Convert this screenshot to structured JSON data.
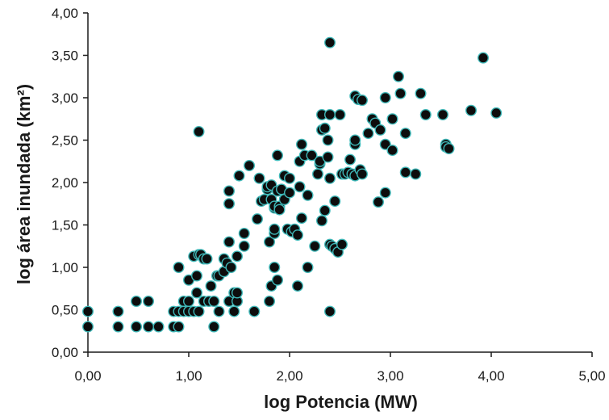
{
  "chart_data": {
    "type": "scatter",
    "xlabel": "log Potencia (MW)",
    "ylabel": "log área inundada (km²)",
    "xlim": [
      0,
      5
    ],
    "ylim": [
      0,
      4
    ],
    "x_ticks": [
      "0,00",
      "1,00",
      "2,00",
      "3,00",
      "4,00",
      "5,00"
    ],
    "y_ticks": [
      "0,00",
      "0,50",
      "1,00",
      "1,50",
      "2,00",
      "2,50",
      "3,00",
      "3,50",
      "4,00"
    ],
    "grid": false,
    "colors": {
      "marker_fill": "#0d0d0d",
      "marker_edge": "#3fb8b8",
      "axis": "#1a1a1a"
    },
    "series": [
      {
        "points": [
          [
            0.0,
            0.48
          ],
          [
            0.0,
            0.3
          ],
          [
            0.3,
            0.48
          ],
          [
            0.3,
            0.3
          ],
          [
            0.48,
            0.6
          ],
          [
            0.48,
            0.3
          ],
          [
            0.6,
            0.6
          ],
          [
            0.6,
            0.3
          ],
          [
            0.7,
            0.3
          ],
          [
            0.85,
            0.48
          ],
          [
            0.85,
            0.3
          ],
          [
            0.9,
            0.3
          ],
          [
            0.9,
            0.48
          ],
          [
            0.9,
            1.0
          ],
          [
            0.95,
            0.6
          ],
          [
            0.95,
            0.48
          ],
          [
            1.0,
            0.85
          ],
          [
            1.0,
            0.6
          ],
          [
            1.0,
            0.48
          ],
          [
            1.05,
            1.13
          ],
          [
            1.05,
            0.48
          ],
          [
            1.08,
            0.7
          ],
          [
            1.08,
            0.9
          ],
          [
            1.1,
            2.6
          ],
          [
            1.1,
            1.15
          ],
          [
            1.1,
            0.48
          ],
          [
            1.12,
            1.15
          ],
          [
            1.15,
            0.6
          ],
          [
            1.15,
            1.1
          ],
          [
            1.18,
            1.1
          ],
          [
            1.2,
            0.6
          ],
          [
            1.22,
            0.78
          ],
          [
            1.25,
            0.3
          ],
          [
            1.25,
            0.6
          ],
          [
            1.28,
            0.9
          ],
          [
            1.3,
            0.9
          ],
          [
            1.3,
            0.48
          ],
          [
            1.35,
            0.95
          ],
          [
            1.35,
            1.1
          ],
          [
            1.38,
            1.05
          ],
          [
            1.4,
            1.3
          ],
          [
            1.4,
            1.75
          ],
          [
            1.4,
            1.9
          ],
          [
            1.4,
            0.6
          ],
          [
            1.42,
            1.0
          ],
          [
            1.45,
            0.7
          ],
          [
            1.45,
            0.48
          ],
          [
            1.48,
            0.6
          ],
          [
            1.48,
            0.7
          ],
          [
            1.48,
            1.13
          ],
          [
            1.5,
            2.08
          ],
          [
            1.55,
            1.25
          ],
          [
            1.55,
            1.4
          ],
          [
            1.6,
            2.2
          ],
          [
            1.65,
            0.48
          ],
          [
            1.68,
            1.57
          ],
          [
            1.7,
            2.05
          ],
          [
            1.72,
            1.78
          ],
          [
            1.75,
            1.8
          ],
          [
            1.78,
            1.92
          ],
          [
            1.78,
            1.95
          ],
          [
            1.8,
            1.3
          ],
          [
            1.8,
            0.6
          ],
          [
            1.82,
            1.97
          ],
          [
            1.82,
            1.8
          ],
          [
            1.82,
            0.78
          ],
          [
            1.85,
            1.4
          ],
          [
            1.85,
            1.45
          ],
          [
            1.85,
            1.7
          ],
          [
            1.85,
            1.72
          ],
          [
            1.85,
            1.0
          ],
          [
            1.88,
            0.85
          ],
          [
            1.88,
            2.32
          ],
          [
            1.88,
            1.9
          ],
          [
            1.9,
            1.72
          ],
          [
            1.9,
            1.68
          ],
          [
            1.92,
            1.92
          ],
          [
            1.95,
            2.08
          ],
          [
            1.95,
            1.8
          ],
          [
            1.98,
            1.45
          ],
          [
            2.0,
            1.88
          ],
          [
            2.0,
            2.05
          ],
          [
            2.02,
            1.42
          ],
          [
            2.05,
            1.45
          ],
          [
            2.08,
            1.38
          ],
          [
            2.08,
            0.78
          ],
          [
            2.1,
            2.25
          ],
          [
            2.1,
            1.95
          ],
          [
            2.12,
            2.45
          ],
          [
            2.12,
            1.58
          ],
          [
            2.15,
            2.32
          ],
          [
            2.18,
            1.0
          ],
          [
            2.18,
            1.85
          ],
          [
            2.22,
            2.32
          ],
          [
            2.25,
            1.25
          ],
          [
            2.28,
            2.1
          ],
          [
            2.3,
            2.22
          ],
          [
            2.3,
            2.25
          ],
          [
            2.32,
            2.62
          ],
          [
            2.32,
            2.8
          ],
          [
            2.32,
            1.55
          ],
          [
            2.35,
            1.67
          ],
          [
            2.35,
            2.64
          ],
          [
            2.38,
            2.5
          ],
          [
            2.38,
            2.3
          ],
          [
            2.4,
            3.65
          ],
          [
            2.4,
            2.8
          ],
          [
            2.4,
            2.05
          ],
          [
            2.4,
            1.27
          ],
          [
            2.4,
            0.48
          ],
          [
            2.42,
            1.25
          ],
          [
            2.45,
            1.22
          ],
          [
            2.45,
            1.78
          ],
          [
            2.48,
            1.18
          ],
          [
            2.5,
            2.8
          ],
          [
            2.52,
            2.1
          ],
          [
            2.52,
            1.27
          ],
          [
            2.55,
            2.1
          ],
          [
            2.58,
            2.12
          ],
          [
            2.6,
            2.27
          ],
          [
            2.62,
            2.1
          ],
          [
            2.65,
            2.08
          ],
          [
            2.65,
            2.45
          ],
          [
            2.65,
            2.5
          ],
          [
            2.65,
            3.02
          ],
          [
            2.68,
            2.98
          ],
          [
            2.7,
            2.15
          ],
          [
            2.72,
            2.97
          ],
          [
            2.72,
            2.1
          ],
          [
            2.78,
            2.58
          ],
          [
            2.82,
            2.75
          ],
          [
            2.85,
            2.7
          ],
          [
            2.88,
            1.77
          ],
          [
            2.9,
            2.62
          ],
          [
            2.95,
            2.45
          ],
          [
            2.95,
            1.88
          ],
          [
            2.95,
            3.0
          ],
          [
            3.02,
            2.75
          ],
          [
            3.02,
            2.38
          ],
          [
            3.08,
            3.25
          ],
          [
            3.1,
            3.05
          ],
          [
            3.15,
            2.58
          ],
          [
            3.15,
            2.12
          ],
          [
            3.25,
            2.1
          ],
          [
            3.3,
            3.05
          ],
          [
            3.35,
            2.8
          ],
          [
            3.52,
            2.8
          ],
          [
            3.55,
            2.45
          ],
          [
            3.55,
            2.42
          ],
          [
            3.58,
            2.4
          ],
          [
            3.8,
            2.85
          ],
          [
            3.92,
            3.47
          ],
          [
            4.05,
            2.82
          ]
        ]
      }
    ]
  }
}
